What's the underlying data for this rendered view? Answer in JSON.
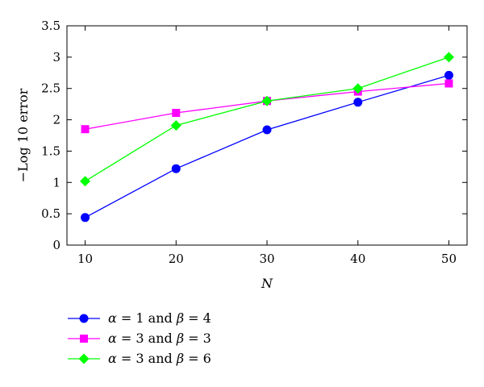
{
  "chart_data": {
    "type": "line",
    "xlabel": "N",
    "ylabel": "−Log 10 error",
    "x": [
      10,
      20,
      30,
      40,
      50
    ],
    "xlim": [
      8,
      52
    ],
    "ylim": [
      0,
      3.5
    ],
    "xticks": [
      "10",
      "20",
      "30",
      "40",
      "50"
    ],
    "yticks": [
      "0",
      "0.5",
      "1",
      "1.5",
      "2",
      "2.5",
      "3",
      "3.5"
    ],
    "grid": false,
    "legend_position": "bottom-left, below plot",
    "series": [
      {
        "name": "α = 1 and β = 4",
        "alpha": "1",
        "beta": "4",
        "color": "#0000ff",
        "marker": "circle",
        "values": [
          0.44,
          1.22,
          1.84,
          2.28,
          2.71
        ]
      },
      {
        "name": "α = 3 and β = 3",
        "alpha": "3",
        "beta": "3",
        "color": "#ff00ff",
        "marker": "square",
        "values": [
          1.85,
          2.11,
          2.3,
          2.45,
          2.58
        ]
      },
      {
        "name": "α = 3 and β = 6",
        "alpha": "3",
        "beta": "6",
        "color": "#00ff00",
        "marker": "diamond",
        "values": [
          1.02,
          1.91,
          2.3,
          2.5,
          3.0
        ]
      }
    ]
  }
}
